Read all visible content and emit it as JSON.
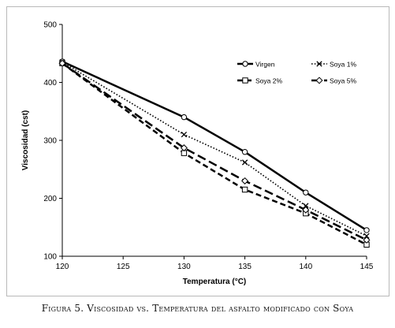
{
  "chart_data": {
    "type": "line",
    "xlabel": "Temperatura (°C)",
    "ylabel": "Viscosidad (cst)",
    "x": [
      120,
      130,
      135,
      140,
      145
    ],
    "xlim": [
      120,
      145
    ],
    "ylim": [
      100,
      500
    ],
    "xticks": [
      "120",
      "125",
      "130",
      "135",
      "140",
      "145"
    ],
    "yticks": [
      "100",
      "200",
      "300",
      "400",
      "500"
    ],
    "legend_position": "top-right",
    "grid": false,
    "series": [
      {
        "name": "Virgen",
        "values": [
          436,
          340,
          280,
          210,
          145
        ],
        "marker": "circle",
        "dash": "solid",
        "width": 2.5
      },
      {
        "name": "Soya 1%",
        "values": [
          435,
          310,
          262,
          187,
          135
        ],
        "marker": "x",
        "dash": "dotted",
        "width": 1.6
      },
      {
        "name": "Soya 2%",
        "values": [
          433,
          278,
          215,
          174,
          120
        ],
        "marker": "square",
        "dash": "dashed",
        "width": 2.5
      },
      {
        "name": "Soya 5%",
        "values": [
          433,
          287,
          230,
          180,
          128
        ],
        "marker": "diamond",
        "dash": "longdash",
        "width": 2.5
      }
    ]
  },
  "caption": "Figura 5. Viscosidad vs. Temperatura del asfalto modificado con Soya",
  "colors": {
    "line": "#000000",
    "axis": "#000000",
    "frame": "#b9b9b9"
  }
}
